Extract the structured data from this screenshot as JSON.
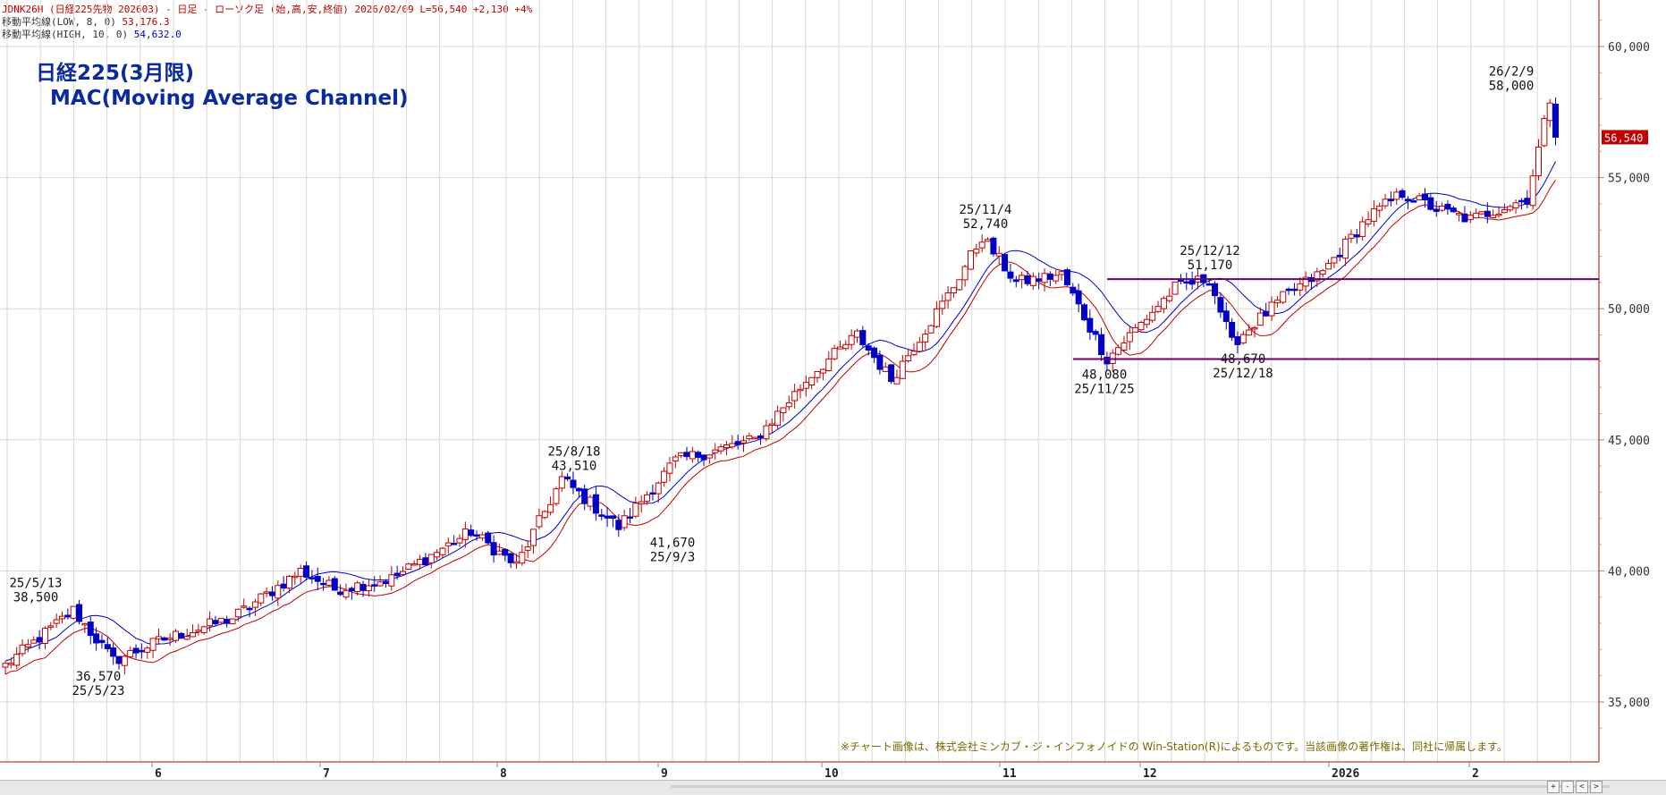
{
  "header": {
    "line1_main": "JDNK26H (日経225先物 202603) - 日足 - ローソク足 (始,高,安,終値)  2026/02/09  L=56,540  +2,130  +4%",
    "line2_label": "移動平均線(LOW, 8, 0)",
    "line2_value": "53,176.3",
    "line3_label": "移動平均線(HIGH, 10, 0)",
    "line3_value": "54,632.0"
  },
  "title": {
    "line1": "日経225(3月限)",
    "line2": "MAC(Moving Average Channel)"
  },
  "note": "※チャート画像は、株式会社ミンカブ・ジ・インフォノイドの Win-Station(R)によるものです。当該画像の著作権は、同社に帰属します。",
  "colors": {
    "up": "#c00000",
    "down": "#0000c8",
    "ma_low": "#c00000",
    "ma_high": "#0000c8",
    "hline": "#6a006a",
    "grid": "#d8d8d8",
    "axis": "#c00000",
    "last_price_bg": "#c00000"
  },
  "chart_data": {
    "type": "candlestick",
    "y_ticks": [
      "35,000",
      "40,000",
      "45,000",
      "50,000",
      "55,000",
      "60,000"
    ],
    "y_tick_values": [
      35000,
      40000,
      45000,
      50000,
      55000,
      60000
    ],
    "ylim": [
      33500,
      62000
    ],
    "x_month_labels": [
      "6",
      "7",
      "8",
      "9",
      "10",
      "11",
      "12",
      "2026",
      "2"
    ],
    "last_price_label": "56,540",
    "last_price": 56540,
    "horizontal_lines": [
      51130,
      48080
    ],
    "annotations": [
      {
        "date": "25/5/13",
        "value": "38,500",
        "price": 38500,
        "pos": "above"
      },
      {
        "date": "25/5/23",
        "value": "36,570",
        "price": 36570,
        "pos": "below"
      },
      {
        "date": "25/8/18",
        "value": "43,510",
        "price": 43510,
        "pos": "above"
      },
      {
        "date": "25/9/3",
        "value": "41,670",
        "price": 41670,
        "pos": "below"
      },
      {
        "date": "25/11/4",
        "value": "52,740",
        "price": 52740,
        "pos": "above"
      },
      {
        "date": "25/11/25",
        "value": "48,080",
        "price": 48080,
        "pos": "below"
      },
      {
        "date": "25/12/12",
        "value": "51,170",
        "price": 51170,
        "pos": "above"
      },
      {
        "date": "25/12/18",
        "value": "48,670",
        "price": 48670,
        "pos": "below"
      },
      {
        "date": "26/2/9",
        "value": "58,000",
        "price": 58000,
        "pos": "above"
      }
    ]
  }
}
